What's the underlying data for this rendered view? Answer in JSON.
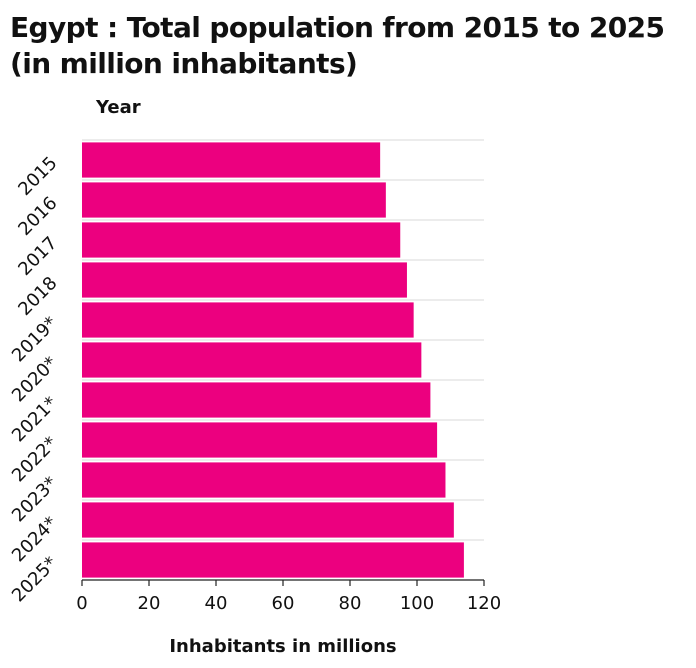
{
  "chart_data": {
    "type": "bar",
    "orientation": "horizontal",
    "title_lines": [
      "Egypt : Total population from 2015 to 2025",
      "(in million inhabitants)"
    ],
    "ylabel": "Year",
    "xlabel": "Inhabitants in millions",
    "categories": [
      "2015",
      "2016",
      "2017",
      "2018",
      "2019*",
      "2020*",
      "2021*",
      "2022*",
      "2023*",
      "2024*",
      "2025*"
    ],
    "values": [
      89.0,
      90.7,
      95.0,
      97.0,
      99.0,
      101.3,
      104.0,
      106.0,
      108.5,
      111.0,
      114.0
    ],
    "xlim": [
      0,
      120
    ],
    "xticks": [
      "0",
      "20",
      "40",
      "60",
      "80",
      "100",
      "120"
    ],
    "grid": true,
    "bar_color": "#ec007f"
  }
}
